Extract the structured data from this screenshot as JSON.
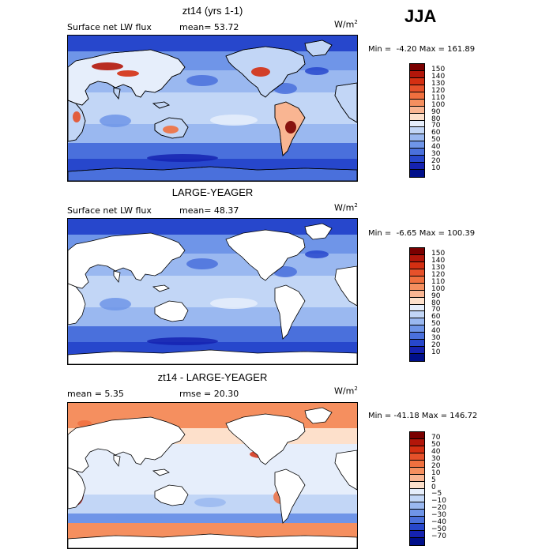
{
  "season": "JJA",
  "panels": [
    {
      "title": "zt14 (yrs 1-1)",
      "left_label": "Surface net LW flux",
      "center_label": "mean=  53.72",
      "units_base": "W/m",
      "units_exp": "2",
      "minmax": "Min =  -4.20 Max = 161.89",
      "colorbar": {
        "labels": [
          "150",
          "140",
          "130",
          "120",
          "110",
          "100",
          "90",
          "80",
          "70",
          "60",
          "50",
          "40",
          "30",
          "20",
          "10"
        ],
        "colors": [
          "#7a0000",
          "#b2160a",
          "#d42f12",
          "#e6512a",
          "#f0703f",
          "#f58f5f",
          "#f9b592",
          "#fde0cb",
          "#e6eefb",
          "#c2d6f6",
          "#9ab8f0",
          "#6f95e8",
          "#4a70dc",
          "#2747cc",
          "#1522b0",
          "#000f8a"
        ]
      },
      "field": "model"
    },
    {
      "title": "LARGE-YEAGER",
      "left_label": "Surface net LW flux",
      "center_label": "mean=  48.37",
      "units_base": "W/m",
      "units_exp": "2",
      "minmax": "Min =  -6.65 Max = 100.39",
      "colorbar": {
        "labels": [
          "150",
          "140",
          "130",
          "120",
          "110",
          "100",
          "90",
          "80",
          "70",
          "60",
          "50",
          "40",
          "30",
          "20",
          "10"
        ],
        "colors": [
          "#7a0000",
          "#b2160a",
          "#d42f12",
          "#e6512a",
          "#f0703f",
          "#f58f5f",
          "#f9b592",
          "#fde0cb",
          "#e6eefb",
          "#c2d6f6",
          "#9ab8f0",
          "#6f95e8",
          "#4a70dc",
          "#2747cc",
          "#1522b0",
          "#000f8a"
        ]
      },
      "field": "obs"
    },
    {
      "title": "zt14 - LARGE-YEAGER",
      "left_label": "mean =     5.35",
      "center_label": "rmse =  20.30",
      "units_base": "W/m",
      "units_exp": "2",
      "minmax": "Min = -41.18 Max = 146.72",
      "colorbar": {
        "labels": [
          "70",
          "50",
          "40",
          "30",
          "20",
          "10",
          "5",
          "0",
          "−5",
          "−10",
          "−20",
          "−30",
          "−40",
          "−50",
          "−70"
        ],
        "colors": [
          "#7a0000",
          "#b2160a",
          "#d42f12",
          "#e6512a",
          "#f0703f",
          "#f58f5f",
          "#f9b592",
          "#fde0cb",
          "#e6eefb",
          "#c2d6f6",
          "#9ab8f0",
          "#6f95e8",
          "#4a70dc",
          "#2747cc",
          "#1522b0",
          "#000f8a"
        ]
      },
      "field": "diff"
    }
  ]
}
